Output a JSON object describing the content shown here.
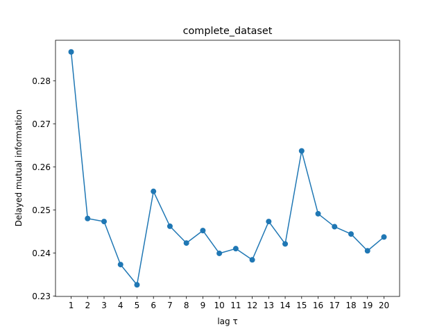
{
  "chart_data": {
    "type": "line",
    "title": "complete_dataset",
    "xlabel": "lag τ",
    "ylabel": "Delayed mutual information",
    "x": [
      1,
      2,
      3,
      4,
      5,
      6,
      7,
      8,
      9,
      10,
      11,
      12,
      13,
      14,
      15,
      16,
      17,
      18,
      19,
      20
    ],
    "series": [
      {
        "values": [
          0.2867,
          0.248,
          0.2473,
          0.2373,
          0.2326,
          0.2543,
          0.2462,
          0.2423,
          0.2452,
          0.2399,
          0.241,
          0.2384,
          0.2473,
          0.2421,
          0.2637,
          0.2491,
          0.2461,
          0.2444,
          0.2405,
          0.2437
        ],
        "color": "#1f77b4",
        "marker": "circle"
      }
    ],
    "xticks": [
      1,
      2,
      3,
      4,
      5,
      6,
      7,
      8,
      9,
      10,
      11,
      12,
      13,
      14,
      15,
      16,
      17,
      18,
      19,
      20
    ],
    "yticks": [
      "0.23",
      "0.24",
      "0.25",
      "0.26",
      "0.27",
      "0.28"
    ],
    "xlim": [
      0.05,
      20.95
    ],
    "ylim": [
      0.2299,
      0.2894
    ],
    "grid": false
  }
}
